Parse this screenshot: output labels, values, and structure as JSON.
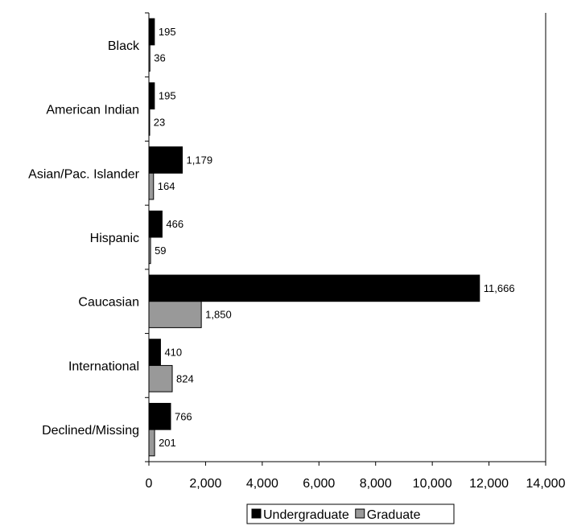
{
  "chart_data": {
    "type": "bar",
    "orientation": "horizontal",
    "categories": [
      "Black",
      "American Indian",
      "Asian/Pac. Islander",
      "Hispanic",
      "Caucasian",
      "International",
      "Declined/Missing"
    ],
    "series": [
      {
        "name": "Undergraduate",
        "color": "#000000",
        "values": [
          195,
          195,
          1179,
          466,
          11666,
          410,
          766
        ],
        "labels": [
          "195",
          "195",
          "1,179",
          "466",
          "11,666",
          "410",
          "766"
        ]
      },
      {
        "name": "Graduate",
        "color": "#999999",
        "values": [
          36,
          23,
          164,
          59,
          1850,
          824,
          201
        ],
        "labels": [
          "36",
          "23",
          "164",
          "59",
          "1,850",
          "824",
          "201"
        ]
      }
    ],
    "xlim": [
      0,
      14000
    ],
    "xticks": [
      0,
      2000,
      4000,
      6000,
      8000,
      10000,
      12000,
      14000
    ],
    "xtick_labels": [
      "0",
      "2,000",
      "4,000",
      "6,000",
      "8,000",
      "10,000",
      "12,000",
      "14,000"
    ],
    "grid": false,
    "legend_position": "bottom"
  }
}
